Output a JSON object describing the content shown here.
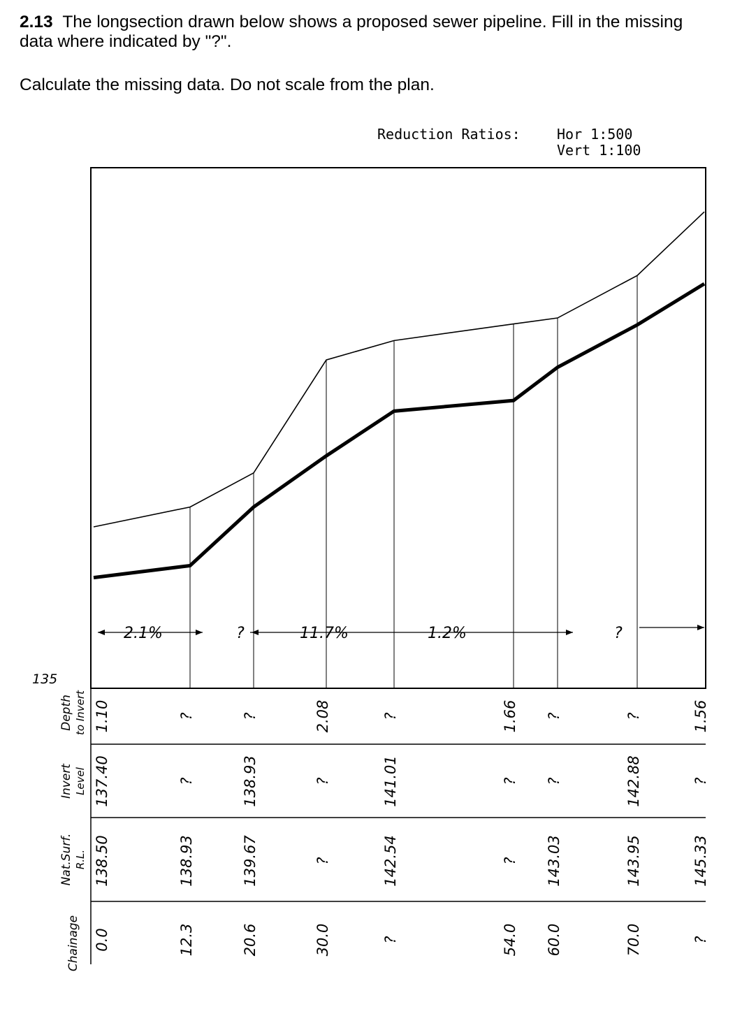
{
  "question": {
    "number": "2.13",
    "text": "The longsection drawn below shows a proposed sewer pipeline.  Fill in the missing data where indicated by \"?\".",
    "instruction": "Calculate the missing data.  Do not scale from the plan."
  },
  "reduction_ratios": {
    "label": "Reduction Ratios:",
    "horizontal": "Hor 1:500",
    "vertical": "Vert 1:100"
  },
  "datum_label": "135",
  "row_headers": {
    "depth": [
      "Depth",
      "to Invert"
    ],
    "invert": [
      "Invert",
      "Level"
    ],
    "surface": [
      "Nat.Surf.",
      "R.L."
    ],
    "chainage": [
      "Chainage"
    ]
  },
  "grades": [
    {
      "label": "2.1%"
    },
    {
      "label": "?"
    },
    {
      "label": "11.7%"
    },
    {
      "label": "1.2%"
    },
    {
      "label": "?"
    }
  ],
  "stations": [
    {
      "chainage": "0.0",
      "surface": "138.50",
      "invert": "137.40",
      "depth": "1.10"
    },
    {
      "chainage": "12.3",
      "surface": "138.93",
      "invert": "?",
      "depth": "?"
    },
    {
      "chainage": "20.6",
      "surface": "139.67",
      "invert": "138.93",
      "depth": "?"
    },
    {
      "chainage": "30.0",
      "surface": "?",
      "invert": "?",
      "depth": "2.08"
    },
    {
      "chainage": "?",
      "surface": "142.54",
      "invert": "141.01",
      "depth": "?"
    },
    {
      "chainage": "54.0",
      "surface": "?",
      "invert": "?",
      "depth": "1.66"
    },
    {
      "chainage": "60.0",
      "surface": "143.03",
      "invert": "?",
      "depth": "?"
    },
    {
      "chainage": "70.0",
      "surface": "143.95",
      "invert": "142.88",
      "depth": "?"
    },
    {
      "chainage": "?",
      "surface": "145.33",
      "invert": "?",
      "depth": "1.56"
    }
  ],
  "chart_data": {
    "type": "line",
    "title": "",
    "xlabel": "Chainage",
    "ylabel": "R.L.",
    "series": [
      {
        "name": "Nat.Surf.",
        "x": [
          0,
          12.3,
          20.6,
          30.0,
          39.6,
          54.0,
          60.0,
          70.0,
          78.5
        ],
        "values": [
          138.5,
          138.93,
          139.67,
          142.12,
          142.54,
          142.9,
          143.03,
          143.95,
          145.33
        ]
      },
      {
        "name": "Invert Level",
        "x": [
          0,
          12.3,
          20.6,
          30.0,
          39.6,
          54.0,
          60.0,
          70.0,
          78.5
        ],
        "values": [
          137.4,
          137.66,
          138.93,
          140.04,
          141.01,
          141.24,
          141.96,
          142.88,
          143.77
        ]
      }
    ],
    "colors": {
      "surface": "#000000",
      "invert": "#000000"
    }
  }
}
